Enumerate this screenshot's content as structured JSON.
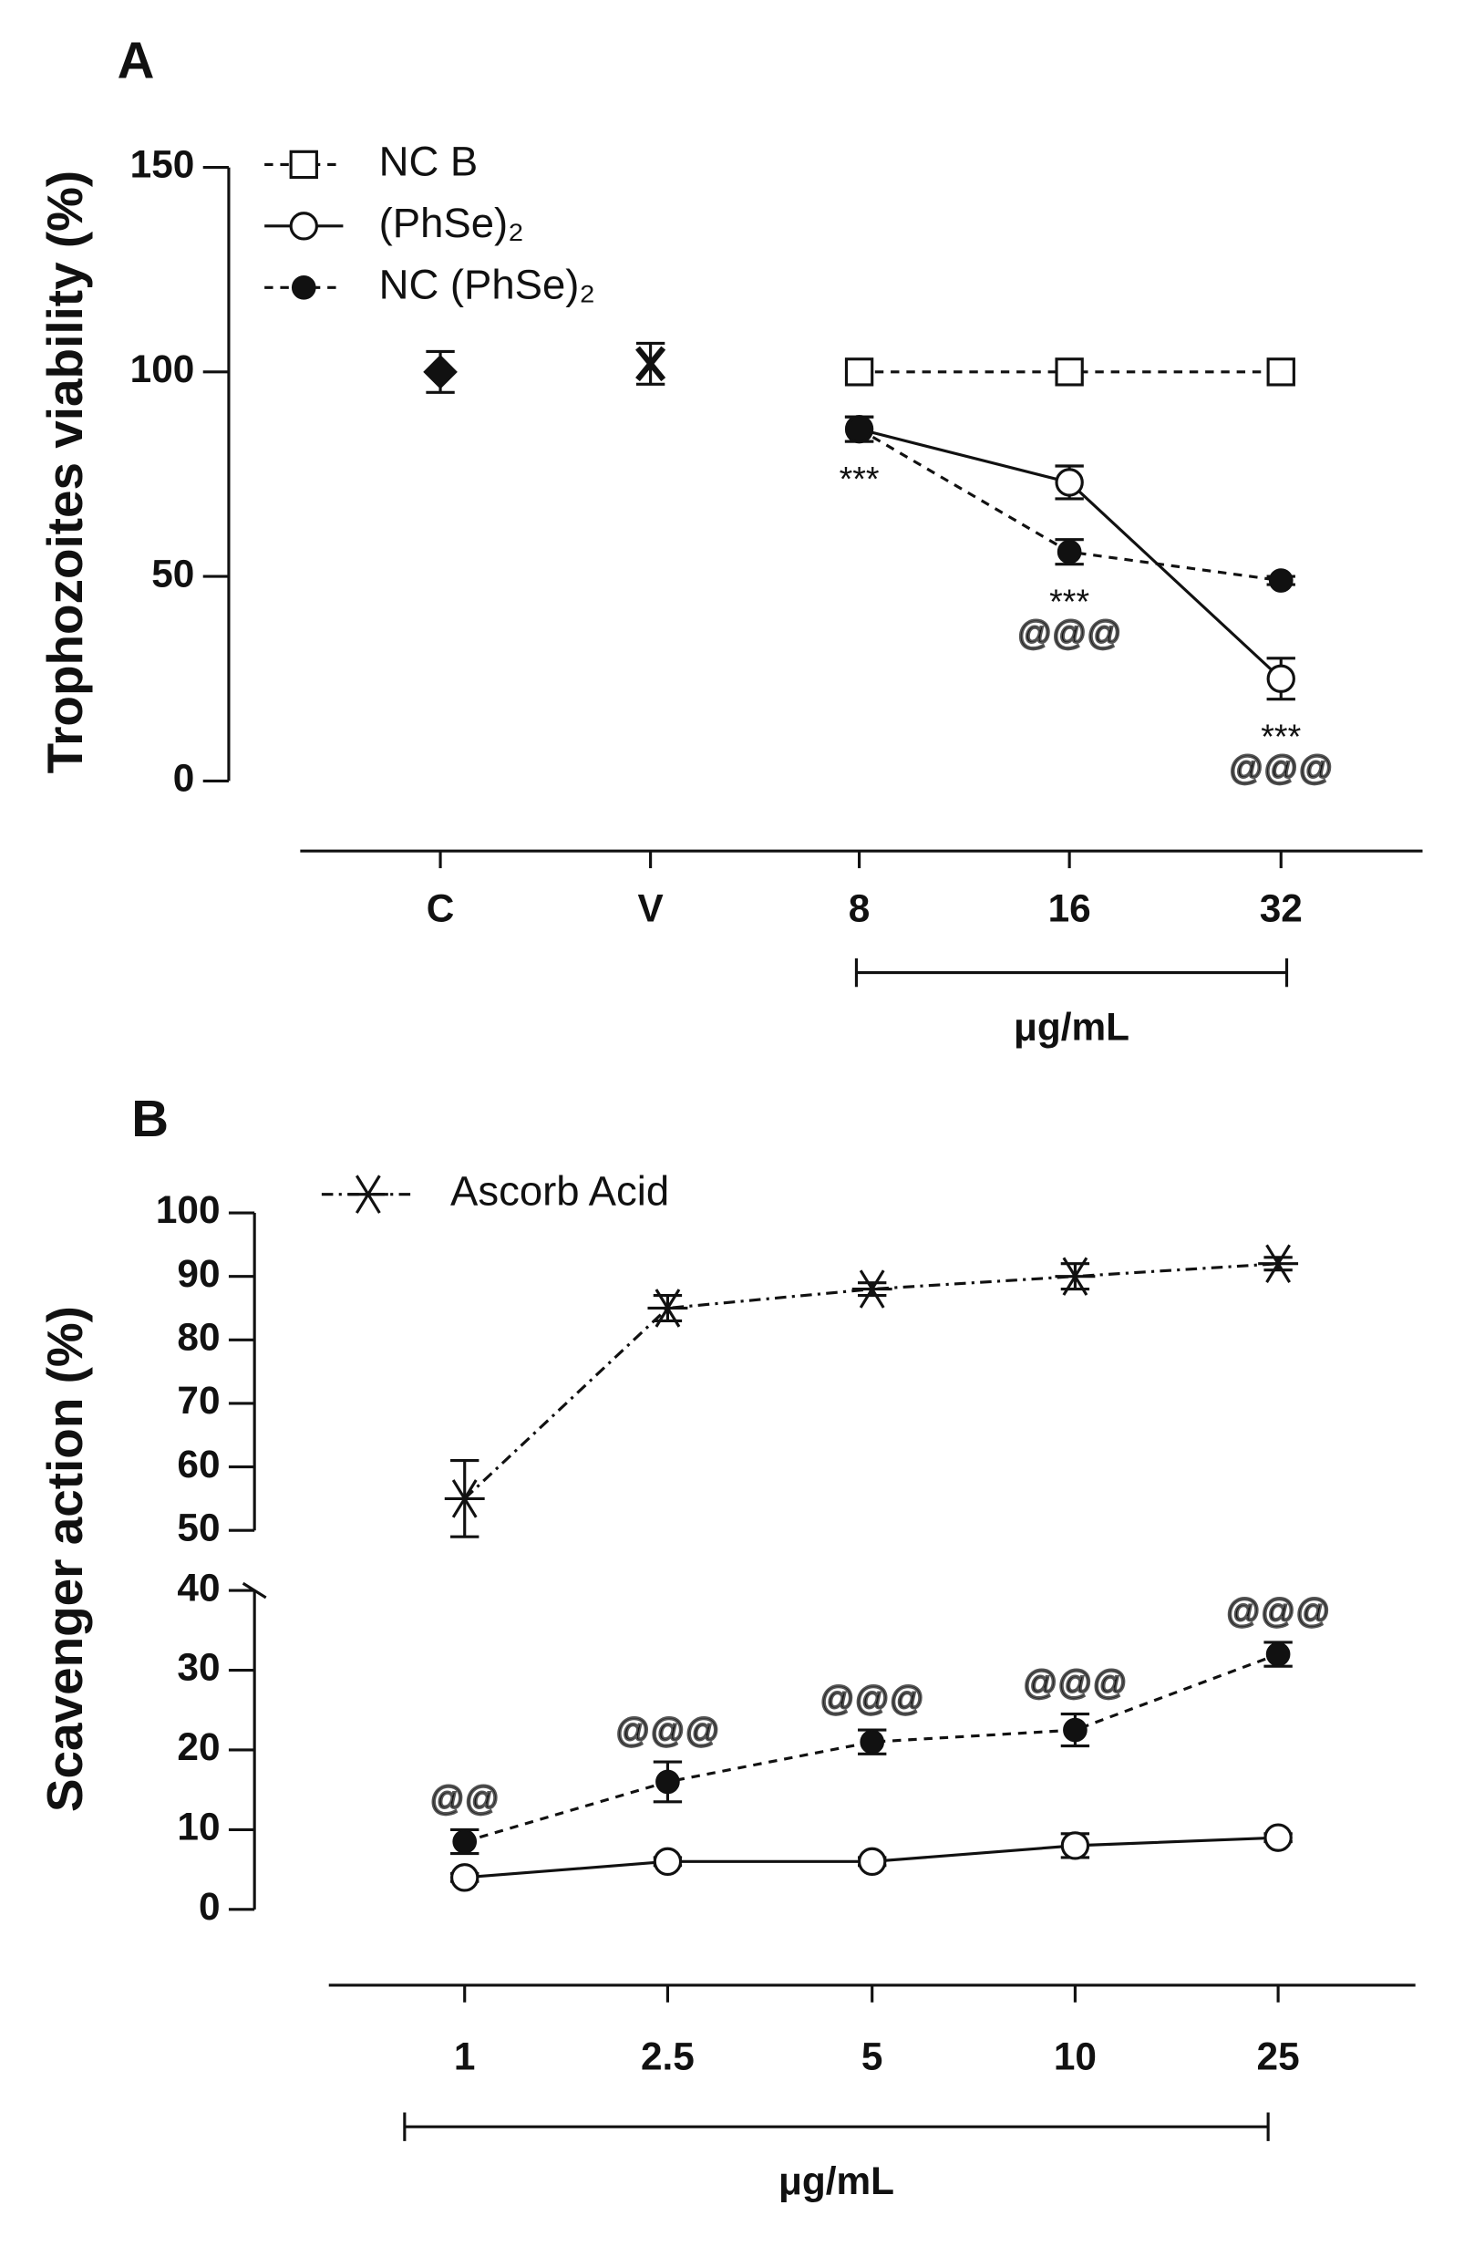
{
  "chart_data": [
    {
      "type": "line",
      "panel": "A",
      "y_label": "Trophozoites viability (%)",
      "x_label": "μg/mL",
      "categories": [
        "C",
        "V",
        "8",
        "16",
        "32"
      ],
      "ylim": [
        0,
        150
      ],
      "yticks": [
        0,
        50,
        100,
        150
      ],
      "grid": false,
      "annotation_position": "below",
      "series": [
        {
          "color": "#111",
          "marker": "diamond",
          "line": "none",
          "values": [
            100,
            null,
            null,
            null,
            null
          ],
          "errors": [
            5,
            null,
            null,
            null,
            null
          ]
        },
        {
          "color": "#111",
          "marker": "x",
          "line": "none",
          "values": [
            null,
            102,
            null,
            null,
            null
          ],
          "errors": [
            null,
            5,
            null,
            null,
            null
          ]
        },
        {
          "name": "NC B",
          "color": "#111",
          "marker": "square",
          "line": "dashed",
          "values": [
            null,
            null,
            100,
            100,
            100
          ],
          "errors": [
            null,
            null,
            0,
            0,
            0
          ]
        },
        {
          "name": "(PhSe)₂",
          "color": "#111",
          "marker": "circle-open",
          "line": "solid",
          "values": [
            null,
            null,
            86,
            73,
            25
          ],
          "errors": [
            null,
            null,
            3,
            4,
            5
          ]
        },
        {
          "name": "NC (PhSe)₂",
          "color": "#111",
          "marker": "circle-filled",
          "line": "dashed",
          "values": [
            null,
            null,
            86,
            56,
            49
          ],
          "errors": [
            null,
            null,
            3,
            3,
            1
          ]
        }
      ],
      "annotations": [
        {
          "text": "***",
          "category": "8"
        },
        {
          "text": "***",
          "category": "16"
        },
        {
          "text": "@@@",
          "category": "16"
        },
        {
          "text": "***",
          "category": "32"
        },
        {
          "text": "@@@",
          "category": "32"
        }
      ]
    },
    {
      "type": "line",
      "panel": "B",
      "y_label": "Scavenger action (%)",
      "x_label": "μg/mL",
      "categories": [
        "1",
        "2.5",
        "5",
        "10",
        "25"
      ],
      "ylim": [
        0,
        40
      ],
      "yticks": [
        0,
        10,
        20,
        30,
        40
      ],
      "y2lim": [
        50,
        100
      ],
      "y2ticks": [
        50,
        60,
        70,
        80,
        90,
        100
      ],
      "grid": false,
      "annotation_position": "above",
      "series": [
        {
          "name": "Ascorb Acid",
          "axis": "y2",
          "color": "#111",
          "marker": "asterisk",
          "line": "dashdot",
          "values": [
            55,
            85,
            88,
            90,
            92
          ],
          "errors": [
            6,
            2,
            1,
            2,
            1
          ]
        },
        {
          "color": "#111",
          "marker": "circle-filled",
          "line": "dashed",
          "values": [
            8.5,
            16,
            21,
            22.5,
            32
          ],
          "errors": [
            1.5,
            2.5,
            1.5,
            2,
            1.5
          ]
        },
        {
          "color": "#111",
          "marker": "circle-open",
          "line": "solid",
          "values": [
            4,
            6,
            6,
            8,
            9
          ],
          "errors": [
            0.5,
            0.5,
            0.5,
            1.5,
            0.5
          ]
        }
      ],
      "annotations": [
        {
          "text": "@@",
          "category": "1"
        },
        {
          "text": "@@@",
          "category": "2.5"
        },
        {
          "text": "@@@",
          "category": "5"
        },
        {
          "text": "@@@",
          "category": "10"
        },
        {
          "text": "@@@",
          "category": "25"
        }
      ]
    }
  ]
}
